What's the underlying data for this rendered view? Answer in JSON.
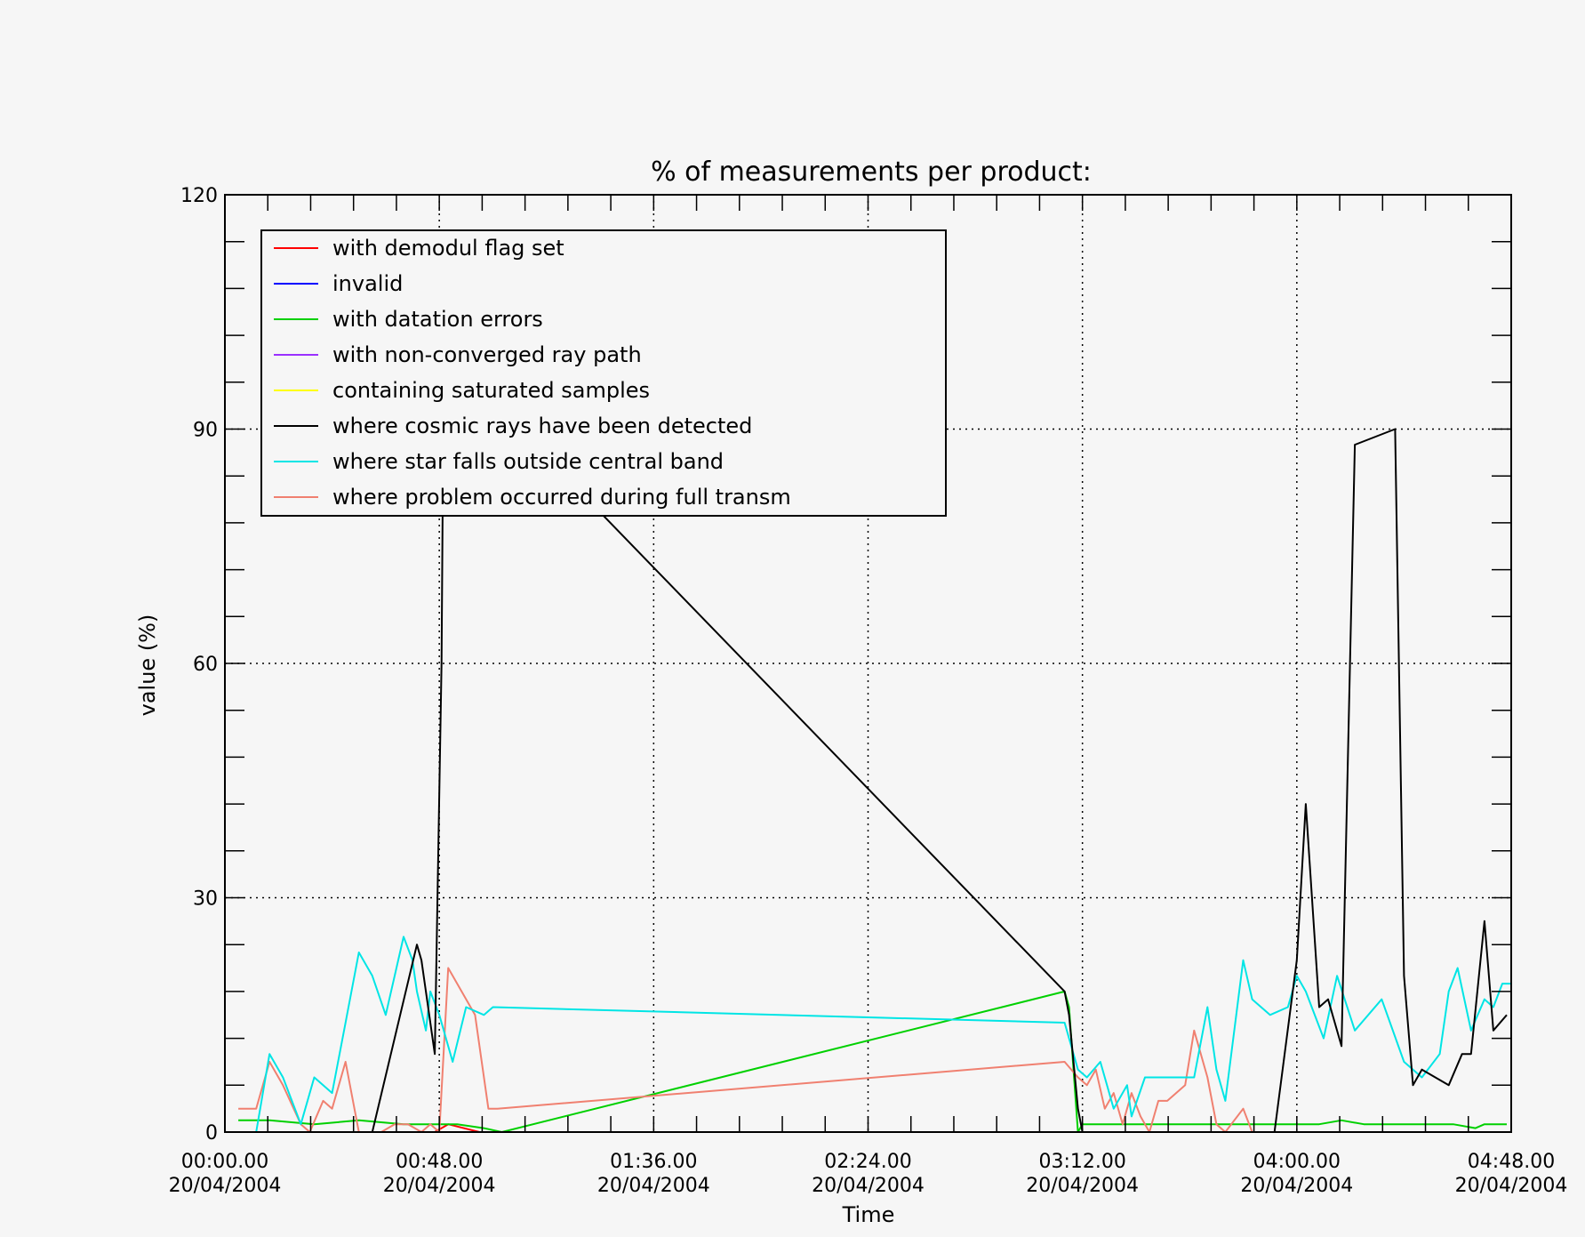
{
  "chart_data": {
    "type": "line",
    "title": "% of measurements per product:",
    "xlabel": "Time",
    "ylabel": "value (%)",
    "xlim_minutes": [
      0,
      288
    ],
    "ylim": [
      0,
      120
    ],
    "grid": true,
    "legend_position": "top-left",
    "x_ticks": [
      {
        "time": "00:00.00",
        "date": "20/04/2004",
        "value": 0
      },
      {
        "time": "00:48.00",
        "date": "20/04/2004",
        "value": 48
      },
      {
        "time": "01:36.00",
        "date": "20/04/2004",
        "value": 96
      },
      {
        "time": "02:24.00",
        "date": "20/04/2004",
        "value": 144
      },
      {
        "time": "03:12.00",
        "date": "20/04/2004",
        "value": 192
      },
      {
        "time": "04:00.00",
        "date": "20/04/2004",
        "value": 240
      },
      {
        "time": "04:48.00",
        "date": "20/04/2004",
        "value": 288
      }
    ],
    "y_ticks": [
      "0",
      "30",
      "60",
      "90",
      "120"
    ],
    "series": [
      {
        "name": "with demodul flag set",
        "color": "#ff0000",
        "x": [
          3,
          47,
          50,
          57,
          288
        ],
        "y": [
          0,
          0,
          1,
          0,
          0
        ]
      },
      {
        "name": "invalid",
        "color": "#0000ff",
        "x": [
          3,
          288
        ],
        "y": [
          0,
          0
        ]
      },
      {
        "name": "with datation errors",
        "color": "#00d000",
        "x": [
          3,
          10,
          20,
          30,
          40,
          45,
          48,
          52,
          58,
          62,
          188,
          189,
          191,
          192,
          200,
          210,
          215,
          222,
          230,
          234,
          240,
          245,
          250,
          255,
          260,
          265,
          270,
          275,
          280,
          282,
          287
        ],
        "y": [
          1.5,
          1.5,
          1,
          1.5,
          1,
          1,
          1,
          1,
          0.5,
          0,
          18,
          16,
          0,
          1,
          1,
          1,
          1,
          1,
          1,
          1,
          1,
          1,
          1.5,
          1,
          1,
          1,
          1,
          1,
          0.5,
          1,
          1
        ]
      },
      {
        "name": "with non-converged ray path",
        "color": "#9b30ff",
        "x": [
          3,
          288
        ],
        "y": [
          0,
          0
        ]
      },
      {
        "name": "containing saturated samples",
        "color": "#ffff00",
        "x": [
          3,
          288
        ],
        "y": [
          0,
          0
        ]
      },
      {
        "name": "where cosmic rays have been detected",
        "color": "#000000",
        "x": [
          3,
          29,
          33,
          38,
          43,
          44,
          47,
          48.5,
          49,
          188,
          189,
          191,
          192,
          230,
          235,
          240,
          242,
          245,
          247,
          250,
          253,
          262,
          264,
          266,
          268,
          274,
          277,
          279,
          282,
          284,
          287
        ],
        "y": [
          0,
          0,
          0,
          12,
          24,
          22,
          10,
          60,
          100,
          18,
          15,
          3,
          0,
          0,
          0,
          22,
          42,
          16,
          17,
          11,
          88,
          90,
          20,
          6,
          8,
          6,
          10,
          10,
          27,
          13,
          15
        ]
      },
      {
        "name": "where star falls outside central band",
        "color": "#00e5e5",
        "x": [
          3,
          7,
          10,
          13,
          17,
          20,
          24,
          27,
          30,
          33,
          36,
          40,
          42,
          43,
          45,
          46,
          48,
          51,
          54,
          58,
          60,
          188,
          189,
          191,
          193,
          196,
          199,
          202,
          203,
          206,
          208,
          211,
          214,
          217,
          220,
          222,
          224,
          228,
          230,
          234,
          238,
          240,
          242,
          246,
          249,
          253,
          259,
          264,
          268,
          272,
          274,
          276,
          279,
          282,
          284,
          286,
          288
        ],
        "y": [
          0,
          0,
          10,
          7,
          1,
          7,
          5,
          14,
          23,
          20,
          15,
          25,
          22,
          18,
          13,
          18,
          15,
          9,
          16,
          15,
          16,
          14,
          12,
          8,
          7,
          9,
          3,
          6,
          2,
          7,
          7,
          7,
          7,
          7,
          16,
          8,
          4,
          22,
          17,
          15,
          16,
          20,
          18,
          12,
          20,
          13,
          17,
          9,
          7,
          10,
          18,
          21,
          13,
          17,
          16,
          19,
          19
        ]
      },
      {
        "name": "where problem occurred during full transm",
        "color": "#f08070",
        "x": [
          3,
          7,
          10,
          13,
          17,
          19,
          22,
          24,
          27,
          30,
          33,
          35,
          38,
          41,
          44,
          46,
          48,
          50,
          53,
          56,
          59,
          61,
          188,
          191,
          193,
          195,
          197,
          199,
          201,
          203,
          205,
          207,
          209,
          211,
          215,
          217,
          220,
          222,
          224,
          228,
          230,
          288
        ],
        "y": [
          3,
          3,
          9,
          6,
          1,
          0,
          4,
          3,
          9,
          0,
          0,
          0,
          1,
          1,
          0,
          1,
          0,
          21,
          18,
          15,
          3,
          3,
          9,
          7,
          6,
          8,
          3,
          5,
          1,
          5,
          2,
          0,
          4,
          4,
          6,
          13,
          7,
          1,
          0,
          3,
          0,
          0
        ]
      }
    ]
  }
}
